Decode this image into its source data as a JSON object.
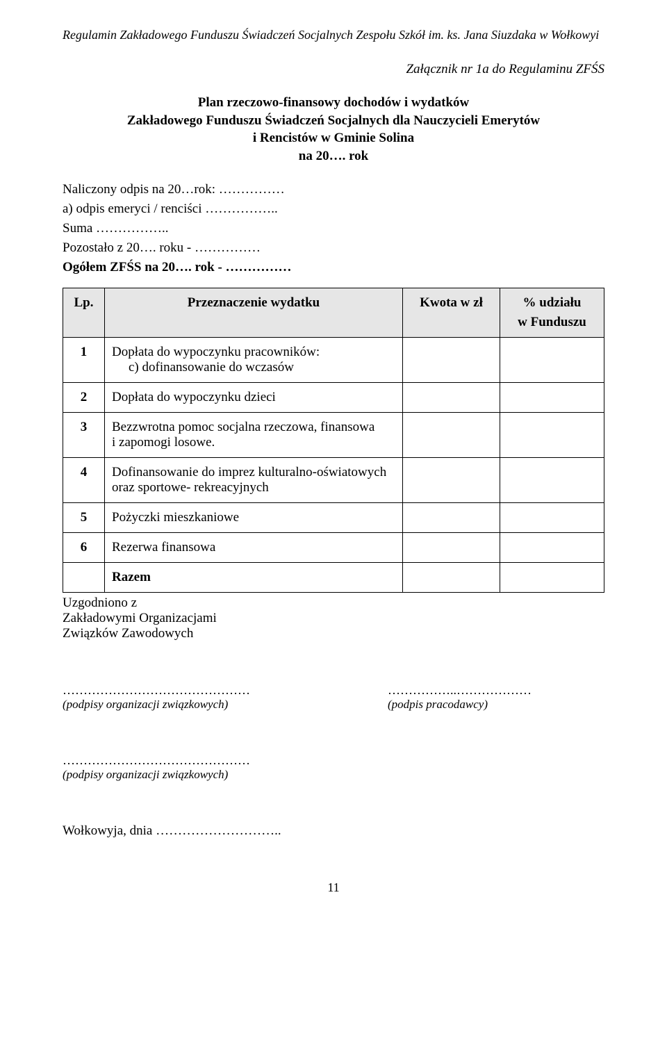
{
  "header": {
    "doc_title_italic": "Regulamin Zakładowego Funduszu Świadczeń Socjalnych Zespołu Szkół im. ks. Jana Siuzdaka w Wołkowyi",
    "attachment": "Załącznik nr 1a do Regulaminu ZFŚS"
  },
  "title": {
    "l1": "Plan rzeczowo-finansowy dochodów i wydatków",
    "l2": "Zakładowego Funduszu Świadczeń Socjalnych dla Nauczycieli Emerytów",
    "l3": "i Rencistów w Gminie Solina",
    "l4": "na 20…. rok"
  },
  "prelines": {
    "l1": "Naliczony odpis na 20…rok: ……………",
    "l2": "a)   odpis emeryci / renciści ……………..",
    "l3": "Suma               ……………..",
    "l4": "Pozostało z 20…. roku        -         ……………",
    "l5": "Ogółem ZFŚS na 20…. rok -         ……………"
  },
  "table": {
    "headers": {
      "lp": "Lp.",
      "przezn": "Przeznaczenie wydatku",
      "kwota": "Kwota w zł",
      "udz_l1": "% udziału",
      "udz_l2": "w Funduszu"
    },
    "rows": [
      {
        "lp": "1",
        "main": "Dopłata do wypoczynku pracowników:",
        "sub": "c)   dofinansowanie do wczasów"
      },
      {
        "lp": "2",
        "main": "Dopłata do wypoczynku dzieci",
        "sub": ""
      },
      {
        "lp": "3",
        "main": "Bezzwrotna pomoc socjalna rzeczowa, finansowa\ni zapomogi losowe.",
        "sub": ""
      },
      {
        "lp": "4",
        "main": "Dofinansowanie do imprez kulturalno-oświatowych\noraz sportowe- rekreacyjnych",
        "sub": ""
      },
      {
        "lp": "5",
        "main": "Pożyczki mieszkaniowe",
        "sub": ""
      },
      {
        "lp": "6",
        "main": "Rezerwa finansowa",
        "sub": ""
      },
      {
        "lp": "",
        "main": "Razem",
        "sub": "",
        "bold": true
      }
    ]
  },
  "footer": {
    "uzg_l1": "Uzgodniono z",
    "uzg_l2": "Zakładowymi Organizacjami",
    "uzg_l3": "Związków Zawodowych",
    "sig_dots_left": "………………………………………",
    "sig_label_left": "(podpisy organizacji związkowych)",
    "sig_dots_right": "……………..………………",
    "sig_label_right": "(podpis pracodawcy)",
    "sig2_dots": "………………………………………",
    "sig2_label": "(podpisy organizacji związkowych)",
    "date_line": "Wołkowyja, dnia ……………………….."
  },
  "page_number": "11",
  "colors": {
    "header_bg": "#e6e6e6",
    "text": "#000000",
    "bg": "#ffffff",
    "border": "#000000"
  }
}
